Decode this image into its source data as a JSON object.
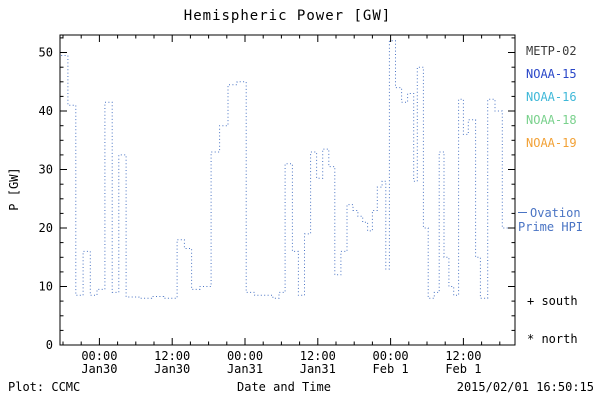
{
  "title": "Hemispheric Power [GW]",
  "footer": {
    "left": "Plot: CCMC",
    "center": "Date and Time",
    "right": "2015/02/01 16:50:15"
  },
  "legend": {
    "satellites": [
      {
        "label": "METP-02",
        "color": "#3a3a3a"
      },
      {
        "label": "NOAA-15",
        "color": "#2a47c8"
      },
      {
        "label": "NOAA-16",
        "color": "#3fb8d8"
      },
      {
        "label": "NOAA-18",
        "color": "#79d18c"
      },
      {
        "label": "NOAA-19",
        "color": "#f2a136"
      }
    ],
    "note": {
      "line1": "Ovation",
      "line2": "Prime HPI",
      "color": "#4a74c4"
    },
    "markers": [
      {
        "symbol": "+",
        "label": "south"
      },
      {
        "symbol": "*",
        "label": "north"
      }
    ]
  },
  "chart_data": {
    "type": "line",
    "style": "dotted-step",
    "title": "Hemispheric Power [GW]",
    "xlabel": "Date and Time",
    "ylabel": "P [GW]",
    "line_color": "#4a74c4",
    "grid": false,
    "xlim_hours_from_jan30_0000": [
      -6.5,
      68.5
    ],
    "ylim": [
      0,
      53
    ],
    "y_ticks": [
      0,
      10,
      20,
      30,
      40,
      50
    ],
    "x_ticks": [
      {
        "hours": 0,
        "time": "00:00",
        "date": "Jan30"
      },
      {
        "hours": 12,
        "time": "12:00",
        "date": "Jan30"
      },
      {
        "hours": 24,
        "time": "00:00",
        "date": "Jan31"
      },
      {
        "hours": 36,
        "time": "12:00",
        "date": "Jan31"
      },
      {
        "hours": 48,
        "time": "00:00",
        "date": "Feb 1"
      },
      {
        "hours": 60,
        "time": "12:00",
        "date": "Feb 1"
      }
    ],
    "x_end_hours": 67.4,
    "points": [
      [
        -6.3,
        49.5
      ],
      [
        -5.2,
        41
      ],
      [
        -3.9,
        8.5
      ],
      [
        -2.7,
        16
      ],
      [
        -1.5,
        8.5
      ],
      [
        -0.4,
        9.5
      ],
      [
        0.9,
        41.5
      ],
      [
        2.1,
        9
      ],
      [
        3.2,
        32.5
      ],
      [
        4.4,
        8.2
      ],
      [
        6.5,
        8.0
      ],
      [
        8.6,
        8.3
      ],
      [
        10.6,
        8.0
      ],
      [
        12.8,
        18
      ],
      [
        14.0,
        16.5
      ],
      [
        15.2,
        9.5
      ],
      [
        16.6,
        10
      ],
      [
        18.4,
        33
      ],
      [
        19.8,
        37.5
      ],
      [
        21.2,
        44.5
      ],
      [
        22.7,
        45
      ],
      [
        24.2,
        9
      ],
      [
        25.6,
        8.5
      ],
      [
        27.2,
        8.5
      ],
      [
        28.6,
        8
      ],
      [
        29.6,
        9
      ],
      [
        30.6,
        31
      ],
      [
        31.8,
        16
      ],
      [
        32.8,
        8.5
      ],
      [
        33.8,
        19
      ],
      [
        34.8,
        33
      ],
      [
        35.8,
        28.5
      ],
      [
        36.8,
        33.5
      ],
      [
        37.8,
        30.5
      ],
      [
        38.8,
        12
      ],
      [
        39.8,
        16
      ],
      [
        40.8,
        24
      ],
      [
        41.8,
        23
      ],
      [
        42.6,
        22
      ],
      [
        43.4,
        21
      ],
      [
        44.2,
        19.5
      ],
      [
        45.0,
        23
      ],
      [
        45.8,
        27
      ],
      [
        46.6,
        28
      ],
      [
        47.2,
        13
      ],
      [
        47.8,
        52
      ],
      [
        48.8,
        44
      ],
      [
        49.8,
        41.5
      ],
      [
        50.8,
        43
      ],
      [
        51.8,
        28
      ],
      [
        52.4,
        47.5
      ],
      [
        53.4,
        20
      ],
      [
        54.2,
        8
      ],
      [
        55.2,
        9
      ],
      [
        56.0,
        33
      ],
      [
        56.8,
        15
      ],
      [
        57.6,
        10
      ],
      [
        58.4,
        8.5
      ],
      [
        59.2,
        42
      ],
      [
        60.0,
        36
      ],
      [
        60.8,
        38.5
      ],
      [
        62.0,
        15
      ],
      [
        62.8,
        8
      ],
      [
        64.0,
        42
      ],
      [
        65.2,
        40
      ],
      [
        66.4,
        20
      ]
    ]
  }
}
